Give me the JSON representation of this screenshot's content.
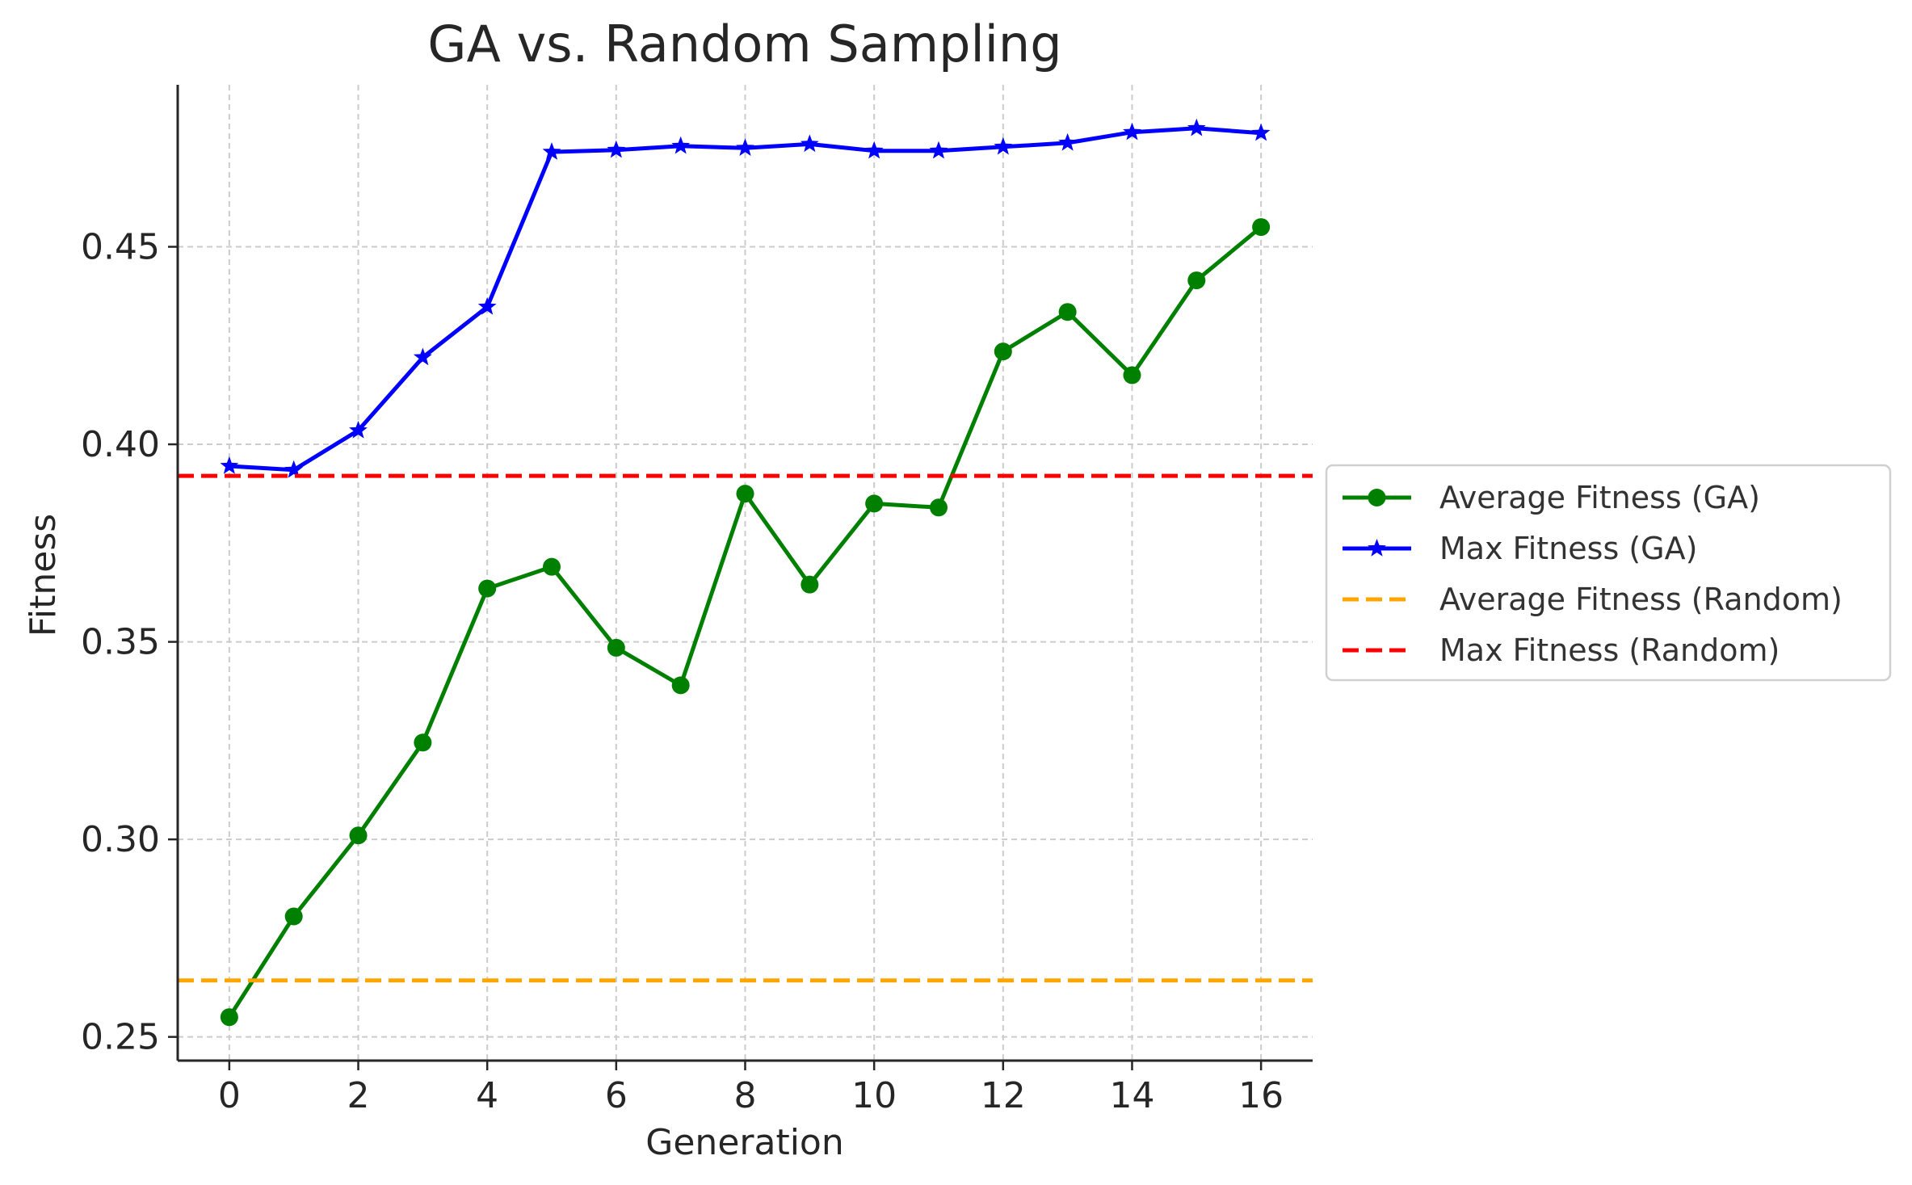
{
  "chart_data": {
    "type": "line",
    "title": "GA vs. Random Sampling",
    "xlabel": "Generation",
    "ylabel": "Fitness",
    "xlim": [
      -0.8,
      16.8
    ],
    "ylim": [
      0.244,
      0.491
    ],
    "x_ticks": [
      0,
      2,
      4,
      6,
      8,
      10,
      12,
      14,
      16
    ],
    "y_ticks": [
      0.25,
      0.3,
      0.35,
      0.4,
      0.45
    ],
    "y_tick_labels": [
      "0.25",
      "0.30",
      "0.35",
      "0.40",
      "0.45"
    ],
    "grid": true,
    "legend_position": "right-outside",
    "x": [
      0,
      1,
      2,
      3,
      4,
      5,
      6,
      7,
      8,
      9,
      10,
      11,
      12,
      13,
      14,
      15,
      16
    ],
    "series": [
      {
        "name": "Average Fitness (GA)",
        "style": "solid",
        "marker": "circle",
        "color": "#008000",
        "values": [
          0.255,
          0.2805,
          0.301,
          0.3245,
          0.3635,
          0.369,
          0.3485,
          0.339,
          0.3875,
          0.3645,
          0.385,
          0.384,
          0.4235,
          0.4335,
          0.4175,
          0.4415,
          0.455
        ]
      },
      {
        "name": "Max Fitness (GA)",
        "style": "solid",
        "marker": "star",
        "color": "#0000ff",
        "values": [
          0.3945,
          0.3935,
          0.4035,
          0.422,
          0.4348,
          0.474,
          0.4745,
          0.4755,
          0.475,
          0.476,
          0.4743,
          0.4743,
          0.4753,
          0.4763,
          0.479,
          0.48,
          0.4788
        ]
      },
      {
        "name": "Average Fitness (Random)",
        "style": "dashed",
        "marker": "none",
        "color": "#ffa500",
        "constant": 0.2643
      },
      {
        "name": "Max Fitness (Random)",
        "style": "dashed",
        "marker": "none",
        "color": "#ff0000",
        "constant": 0.392
      }
    ]
  }
}
